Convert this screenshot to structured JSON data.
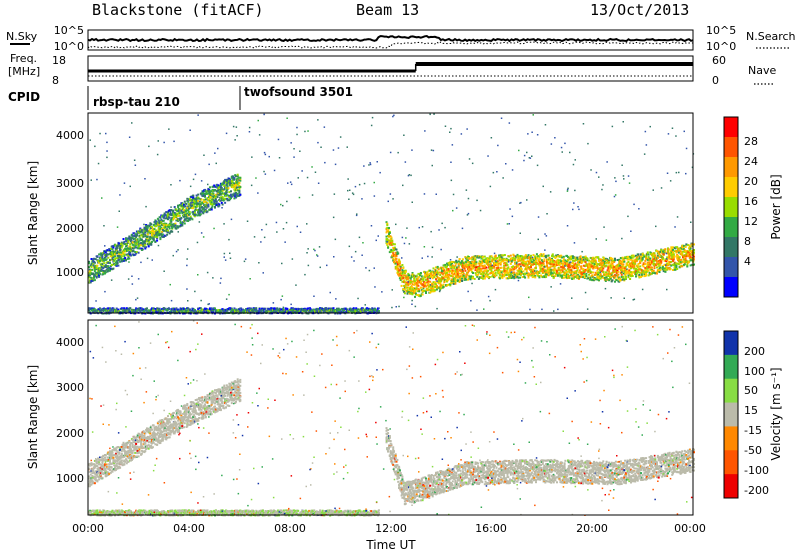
{
  "header": {
    "station": "Blackstone (fitACF)",
    "beam": "Beam 13",
    "date": "13/Oct/2013"
  },
  "noise_panel": {
    "left_label": "N.Sky",
    "left_ticks": [
      "10^5",
      "10^0"
    ],
    "right_label": "N.Search",
    "right_ticks": [
      "10^5",
      "10^0"
    ]
  },
  "freq_panel": {
    "left_label_1": "Freq.",
    "left_label_2": "[MHz]",
    "left_ticks": [
      "18",
      "8"
    ],
    "right_label": "Nave",
    "right_ticks": [
      "60",
      "0"
    ]
  },
  "cpid_panel": {
    "label": "CPID",
    "programs": [
      "rbsp-tau 210",
      "twofsound 3501"
    ]
  },
  "power_scale": {
    "label": "Power [dB]",
    "ticks": [
      "28",
      "24",
      "20",
      "16",
      "12",
      "8",
      "4"
    ],
    "colors": [
      "#ff0000",
      "#ff5500",
      "#ff9900",
      "#ffcc00",
      "#99dd00",
      "#33aa44",
      "#337766",
      "#3355aa",
      "#0000ff"
    ]
  },
  "velocity_scale": {
    "label": "Velocity [m s⁻¹]",
    "ticks": [
      "200",
      "100",
      "50",
      "15",
      "-15",
      "-50",
      "-100",
      "-200"
    ],
    "colors": [
      "#1133aa",
      "#33aa55",
      "#88dd44",
      "#bbbbaa",
      "#ff8800",
      "#ff5500",
      "#ee0000"
    ]
  },
  "axes": {
    "ylabel": "Slant Range [km]",
    "yticks": [
      "4000",
      "3000",
      "2000",
      "1000"
    ],
    "xticks": [
      "00:00",
      "04:00",
      "08:00",
      "12:00",
      "16:00",
      "20:00",
      "00:00"
    ],
    "xlabel": "Time UT"
  },
  "chart_data": [
    {
      "type": "heatmap",
      "title": "",
      "xlabel": "",
      "ylabel": "Slant Range [km]",
      "x_unit": "hours UT",
      "xlim": [
        0,
        24
      ],
      "ylim": [
        180,
        4600
      ],
      "colorbar": "Power [dB]",
      "color_range": [
        0,
        30
      ],
      "features": [
        {
          "name": "diagonal echo band",
          "x": [
            0,
            2,
            4,
            6
          ],
          "y": [
            1100,
            1800,
            2500,
            3050
          ],
          "value": 14
        },
        {
          "name": "near-range echoes",
          "x": [
            0,
            6,
            11.5
          ],
          "y": [
            250,
            250,
            250
          ],
          "value": 10
        },
        {
          "name": "post-noon echo band",
          "x": [
            11.8,
            12.5,
            13,
            15,
            18,
            21,
            24
          ],
          "y": [
            2000,
            900,
            800,
            1200,
            1250,
            1150,
            1500
          ],
          "value": 22
        }
      ]
    },
    {
      "type": "heatmap",
      "title": "",
      "xlabel": "Time UT",
      "ylabel": "Slant Range [km]",
      "x_unit": "hours UT",
      "xlim": [
        0,
        24
      ],
      "ylim": [
        180,
        4600
      ],
      "colorbar": "Velocity [m s⁻¹]",
      "color_range": [
        -200,
        200
      ],
      "features": [
        {
          "name": "diagonal echo band",
          "x": [
            0,
            2,
            4,
            6
          ],
          "y": [
            1100,
            1800,
            2500,
            3050
          ],
          "value": 0
        },
        {
          "name": "near-range echoes",
          "x": [
            0,
            6,
            11.5
          ],
          "y": [
            250,
            250,
            250
          ],
          "value": 25
        },
        {
          "name": "post-noon echo band",
          "x": [
            11.8,
            12.5,
            13,
            15,
            18,
            21,
            24
          ],
          "y": [
            2000,
            700,
            750,
            1150,
            1200,
            1150,
            1450
          ],
          "value": 0
        }
      ]
    }
  ]
}
